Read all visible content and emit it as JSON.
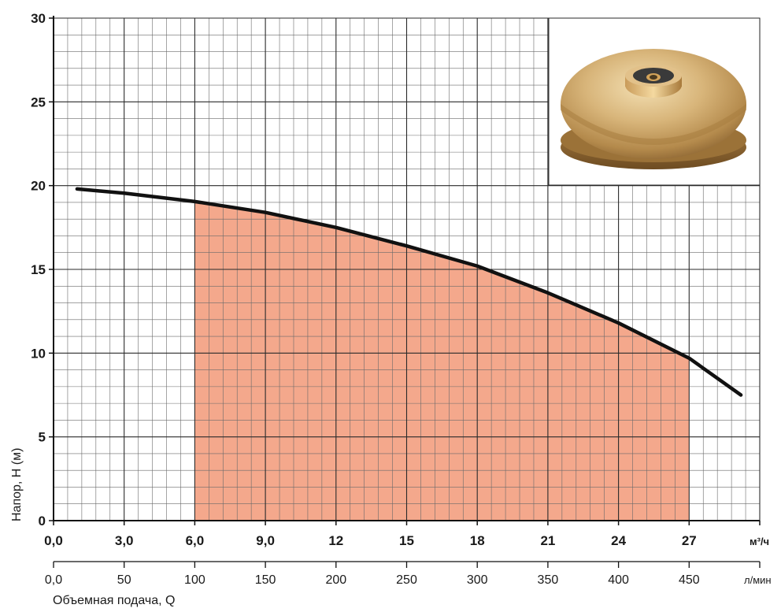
{
  "chart_data": {
    "type": "line",
    "title": "",
    "ylabel": "Напор, Н (м)",
    "xlabel": "Объемная подача, Q",
    "x_unit_primary": "м³/ч",
    "x_unit_secondary": "л/мин",
    "xlim_m3h": [
      0,
      30
    ],
    "ylim": [
      0,
      30
    ],
    "y_ticks": [
      "0",
      "5",
      "10",
      "15",
      "20",
      "25",
      "30"
    ],
    "x_ticks_m3h": [
      "0,0",
      "3,0",
      "6,0",
      "9,0",
      "12",
      "15",
      "18",
      "21",
      "24",
      "27"
    ],
    "x_ticks_lmin": [
      "0,0",
      "50",
      "100",
      "150",
      "200",
      "250",
      "300",
      "350",
      "400",
      "450"
    ],
    "grid": true,
    "operating_range_m3h": [
      6,
      27
    ],
    "series": [
      {
        "x": [
          1.0,
          3.0,
          6.0,
          9.0,
          12.0,
          15.0,
          18.0,
          21.0,
          24.0,
          27.0,
          29.2
        ],
        "y": [
          19.8,
          19.55,
          19.05,
          18.4,
          17.5,
          16.4,
          15.2,
          13.6,
          11.8,
          9.7,
          7.5
        ]
      }
    ],
    "colors": {
      "curve": "#111111",
      "operating_fill": "#f4a88c",
      "grid_major": "#2a2a2a",
      "grid_minor": "#6a6a6a"
    },
    "inset_image": "bronze-impeller"
  }
}
